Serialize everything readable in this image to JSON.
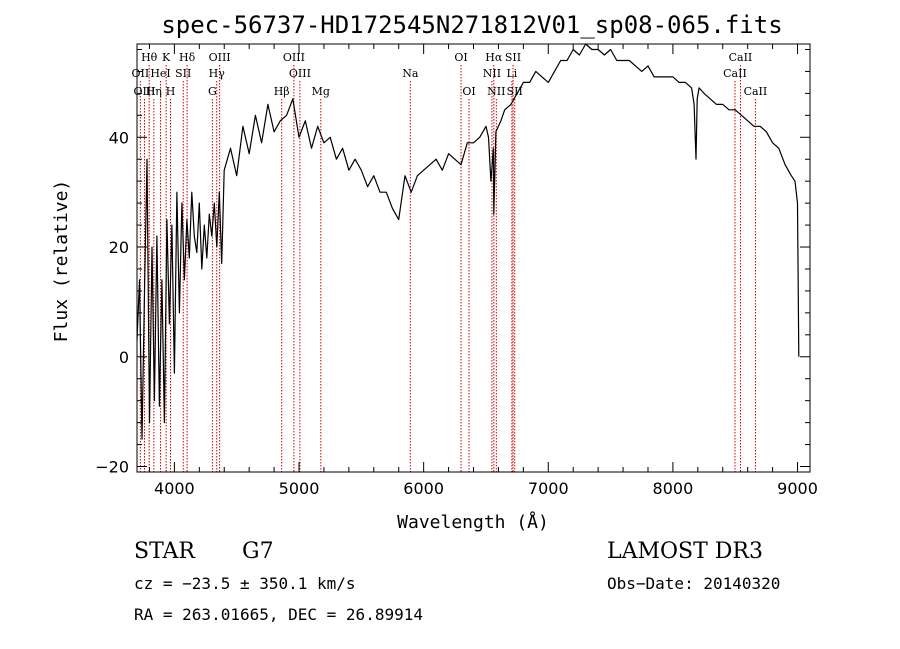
{
  "chart_data": {
    "type": "line",
    "title": "spec-56737-HD172545N271812V01_sp08-065.fits",
    "xlabel": "Wavelength (Å)",
    "ylabel": "Flux (relative)",
    "xlim": [
      3700,
      9100
    ],
    "ylim": [
      -21,
      57
    ],
    "xticks": [
      {
        "value": 4000,
        "label": "4000"
      },
      {
        "value": 5000,
        "label": "5000"
      },
      {
        "value": 6000,
        "label": "6000"
      },
      {
        "value": 7000,
        "label": "7000"
      },
      {
        "value": 8000,
        "label": "8000"
      },
      {
        "value": 9000,
        "label": "9000"
      }
    ],
    "yticks": [
      {
        "value": -20,
        "label": "−20"
      },
      {
        "value": 0,
        "label": "0"
      },
      {
        "value": 20,
        "label": "20"
      },
      {
        "value": 40,
        "label": "40"
      }
    ],
    "series": [
      {
        "color": "#000000",
        "x": [
          3700,
          3720,
          3740,
          3760,
          3780,
          3800,
          3820,
          3840,
          3860,
          3880,
          3900,
          3920,
          3940,
          3960,
          3980,
          4000,
          4020,
          4040,
          4060,
          4080,
          4100,
          4120,
          4140,
          4160,
          4180,
          4200,
          4220,
          4240,
          4260,
          4280,
          4300,
          4320,
          4340,
          4360,
          4380,
          4400,
          4450,
          4500,
          4550,
          4600,
          4650,
          4700,
          4750,
          4800,
          4850,
          4900,
          4950,
          5000,
          5050,
          5100,
          5150,
          5200,
          5250,
          5300,
          5350,
          5400,
          5450,
          5500,
          5550,
          5600,
          5650,
          5700,
          5750,
          5800,
          5850,
          5900,
          5950,
          6000,
          6050,
          6100,
          6150,
          6200,
          6250,
          6300,
          6350,
          6400,
          6450,
          6500,
          6520,
          6540,
          6560,
          6563,
          6580,
          6600,
          6620,
          6650,
          6700,
          6750,
          6800,
          6850,
          6900,
          6950,
          7000,
          7050,
          7100,
          7150,
          7200,
          7250,
          7300,
          7350,
          7400,
          7450,
          7500,
          7550,
          7600,
          7650,
          7700,
          7750,
          7800,
          7850,
          7900,
          7950,
          8000,
          8050,
          8100,
          8150,
          8170,
          8185,
          8195,
          8210,
          8250,
          8300,
          8350,
          8400,
          8450,
          8500,
          8550,
          8600,
          8650,
          8700,
          8750,
          8800,
          8850,
          8900,
          8950,
          8980,
          9000,
          9010
        ],
        "y": [
          3,
          14,
          -15,
          12,
          36,
          -12,
          20,
          -8,
          22,
          -9,
          14,
          -12,
          25,
          6,
          24,
          -3,
          30,
          8,
          28,
          14,
          25,
          18,
          30,
          22,
          19,
          28,
          16,
          24,
          18,
          26,
          22,
          28,
          20,
          30,
          17,
          34,
          38,
          33,
          42,
          37,
          44,
          39,
          46,
          41,
          43,
          44,
          47,
          40,
          43,
          38,
          42,
          39,
          40,
          36,
          38,
          34,
          36,
          34,
          31,
          33,
          30,
          30,
          27,
          25,
          33,
          30,
          33,
          34,
          35,
          36,
          34,
          37,
          36,
          35,
          39,
          39,
          40,
          42,
          40,
          32,
          38,
          26,
          41,
          42,
          43,
          45,
          46,
          48,
          50,
          50,
          52,
          51,
          50,
          52,
          54,
          54,
          56,
          55,
          57,
          56,
          56,
          55,
          56,
          54,
          54,
          54,
          53,
          52,
          53,
          51,
          51,
          51,
          51,
          50,
          50,
          49,
          46,
          36,
          47,
          49,
          48,
          47,
          46,
          46,
          45,
          45,
          44,
          43,
          42,
          42,
          41,
          39,
          38,
          35,
          33,
          32,
          28,
          0
        ]
      }
    ],
    "spectral_lines": [
      {
        "label": "Hθ",
        "wavelength": 3798,
        "row": 1
      },
      {
        "label": "K",
        "wavelength": 3934,
        "row": 1
      },
      {
        "label": "Hδ",
        "wavelength": 4102,
        "row": 1
      },
      {
        "label": "OIII",
        "wavelength": 4363,
        "row": 1
      },
      {
        "label": "OIII",
        "wavelength": 4959,
        "row": 1
      },
      {
        "label": "OI",
        "wavelength": 6300,
        "row": 1
      },
      {
        "label": "Hα",
        "wavelength": 6563,
        "row": 1
      },
      {
        "label": "SII",
        "wavelength": 6717,
        "row": 1
      },
      {
        "label": "CaII",
        "wavelength": 8542,
        "row": 1
      },
      {
        "label": "OII",
        "wavelength": 3727,
        "row": 2
      },
      {
        "label": "HeI",
        "wavelength": 3889,
        "row": 2
      },
      {
        "label": "SII",
        "wavelength": 4071,
        "row": 2
      },
      {
        "label": "Hγ",
        "wavelength": 4340,
        "row": 2
      },
      {
        "label": "OIII",
        "wavelength": 5007,
        "row": 2
      },
      {
        "label": "Na",
        "wavelength": 5893,
        "row": 2
      },
      {
        "label": "NII",
        "wavelength": 6548,
        "row": 2
      },
      {
        "label": "Li",
        "wavelength": 6708,
        "row": 2
      },
      {
        "label": "CaII",
        "wavelength": 8498,
        "row": 2
      },
      {
        "label": "OIII",
        "wavelength": 3760,
        "row": 3
      },
      {
        "label": "Hη",
        "wavelength": 3835,
        "row": 3
      },
      {
        "label": "H",
        "wavelength": 3969,
        "row": 3
      },
      {
        "label": "G",
        "wavelength": 4305,
        "row": 3
      },
      {
        "label": "Hβ",
        "wavelength": 4861,
        "row": 3
      },
      {
        "label": "Mg",
        "wavelength": 5175,
        "row": 3
      },
      {
        "label": "OI",
        "wavelength": 6364,
        "row": 3
      },
      {
        "label": "NII",
        "wavelength": 6583,
        "row": 3
      },
      {
        "label": "SII",
        "wavelength": 6731,
        "row": 3
      },
      {
        "label": "CaII",
        "wavelength": 8662,
        "row": 3
      }
    ],
    "line_color": "#cc0000"
  },
  "info": {
    "object_class": "STAR",
    "subclass": "G7",
    "survey": "LAMOST DR3",
    "redshift": "cz = −23.5 ± 350.1 km/s",
    "obs_date": "Obs−Date: 20140320",
    "coords": "RA = 263.01665, DEC =  26.89914"
  }
}
